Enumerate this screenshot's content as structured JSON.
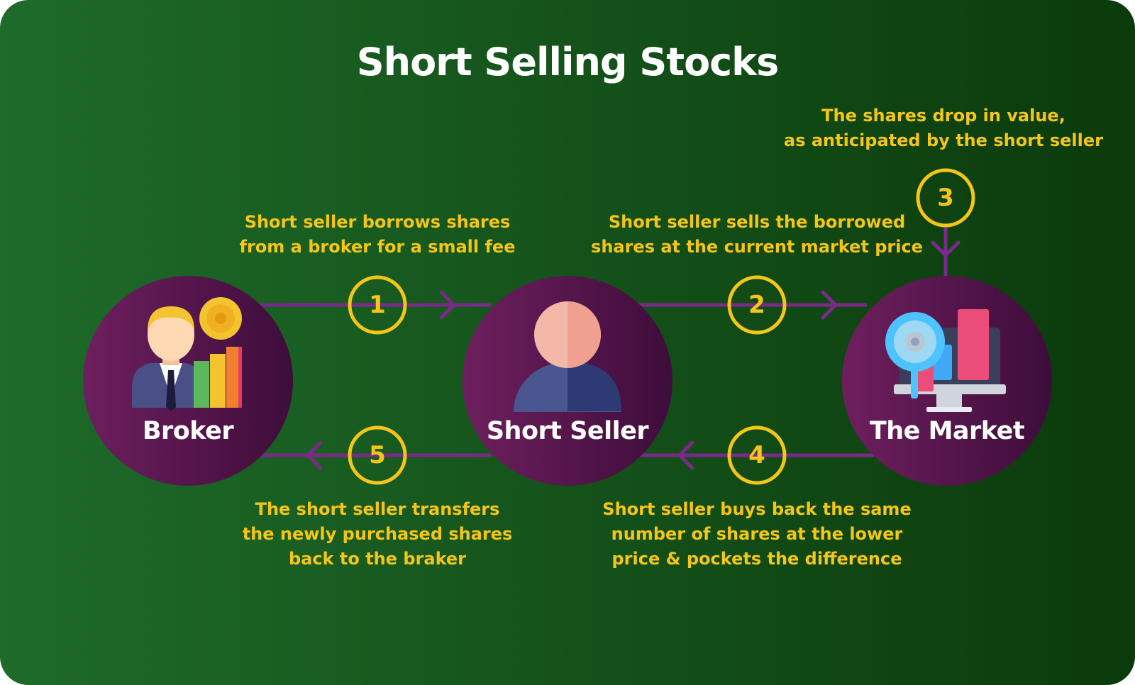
{
  "title": "Short Selling Stocks",
  "colors": {
    "bg_start": "#1e6b2a",
    "bg_end": "#0b3a0b",
    "node_fill": "#6e1f5e",
    "node_fill_dark": "#3d0d3a",
    "connector": "#7b2a8a",
    "accent": "#f5c518",
    "label": "#ffffff"
  },
  "nodes": [
    {
      "id": "broker",
      "label": "Broker",
      "icon": "broker-icon"
    },
    {
      "id": "short-seller",
      "label": "Short Seller",
      "icon": "person-icon"
    },
    {
      "id": "market",
      "label": "The Market",
      "icon": "market-monitor-icon"
    }
  ],
  "steps": [
    {
      "number": "1",
      "lines": [
        "Short seller borrows shares",
        "from a broker for a small fee"
      ]
    },
    {
      "number": "2",
      "lines": [
        "Short seller sells the borrowed",
        "shares at the current market price"
      ]
    },
    {
      "number": "3",
      "lines": [
        "The shares drop in value,",
        "as anticipated by the short seller"
      ]
    },
    {
      "number": "4",
      "lines": [
        "Short seller buys back the same",
        "number of shares at the lower",
        "price & pockets the difference"
      ]
    },
    {
      "number": "5",
      "lines": [
        "The short seller transfers",
        "the newly purchased shares",
        "back to the braker"
      ]
    }
  ]
}
